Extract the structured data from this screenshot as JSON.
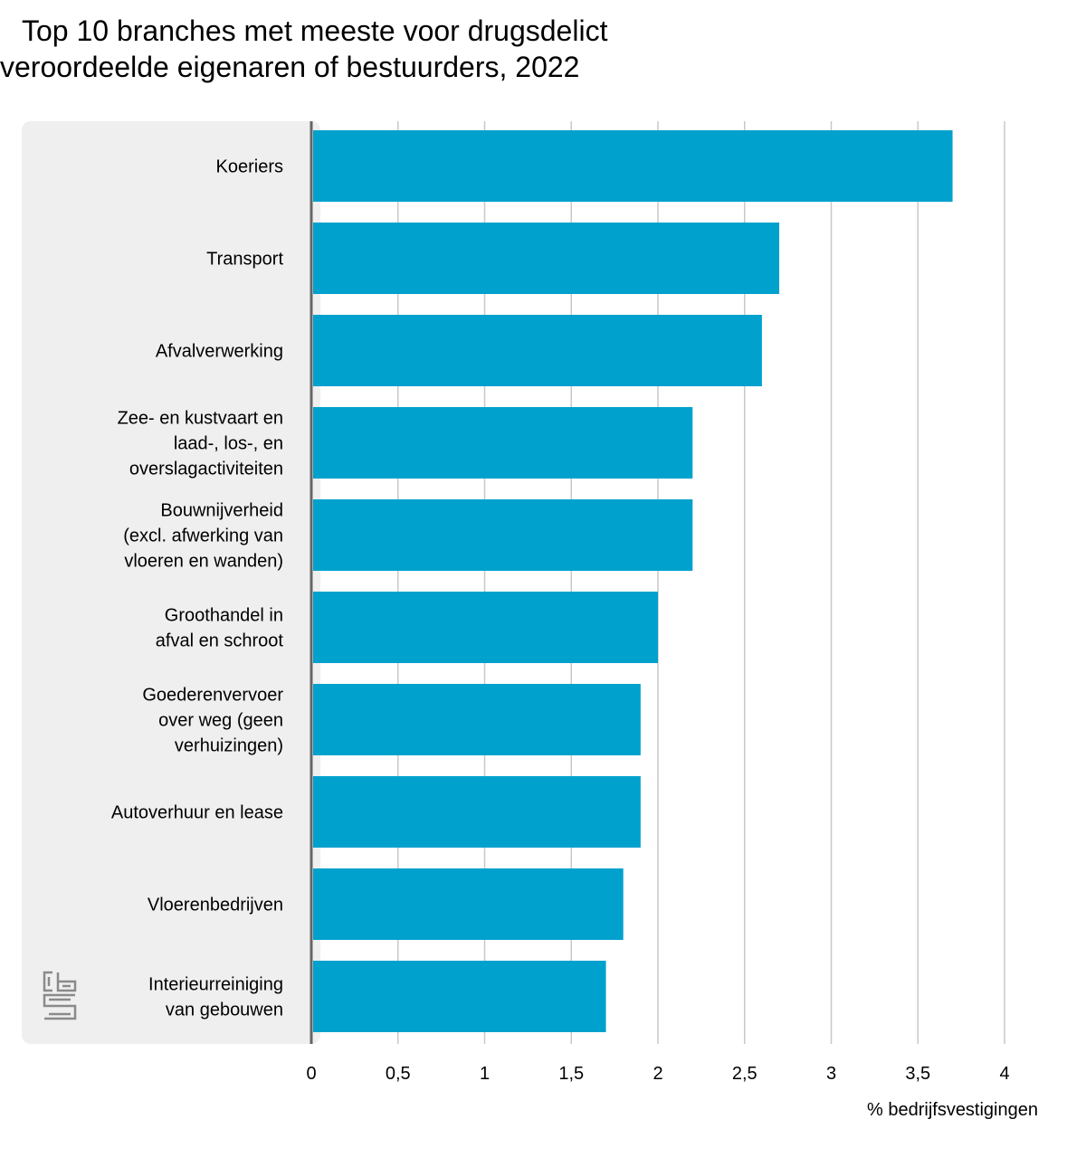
{
  "title_lines": [
    "Top 10 branches met meeste voor drugsdelict",
    "veroordeelde eigenaren of bestuurders, 2022"
  ],
  "chart_data": {
    "type": "bar",
    "orientation": "horizontal",
    "title": "Top 10 branches met meeste voor drugsdelict veroordeelde eigenaren of bestuurders, 2022",
    "xlabel": "% bedrijfsvestigingen",
    "ylabel": "",
    "xlim": [
      0,
      4
    ],
    "ticks": [
      "0",
      "0,5",
      "1",
      "1,5",
      "2",
      "2,5",
      "3",
      "3,5",
      "4"
    ],
    "tick_values": [
      0,
      0.5,
      1,
      1.5,
      2,
      2.5,
      3,
      3.5,
      4
    ],
    "grid": true,
    "bar_color": "#00a1cd",
    "categories": [
      [
        "Koeriers"
      ],
      [
        "Transport"
      ],
      [
        "Afvalverwerking"
      ],
      [
        "Zee- en kustvaart en",
        "laad-, los-, en",
        "overslagactiviteiten"
      ],
      [
        "Bouwnijverheid",
        "(excl. afwerking van",
        "vloeren en wanden)"
      ],
      [
        "Groothandel in",
        "afval en schroot"
      ],
      [
        "Goederenvervoer",
        "over weg (geen",
        "verhuizingen)"
      ],
      [
        "Autoverhuur en lease"
      ],
      [
        "Vloerenbedrijven"
      ],
      [
        "Interieurreiniging",
        "van gebouwen"
      ]
    ],
    "values": [
      3.7,
      2.7,
      2.6,
      2.2,
      2.2,
      2.0,
      1.9,
      1.9,
      1.8,
      1.7
    ]
  },
  "logo": {
    "icon": "cbs-logo-icon",
    "text": "cbs"
  }
}
